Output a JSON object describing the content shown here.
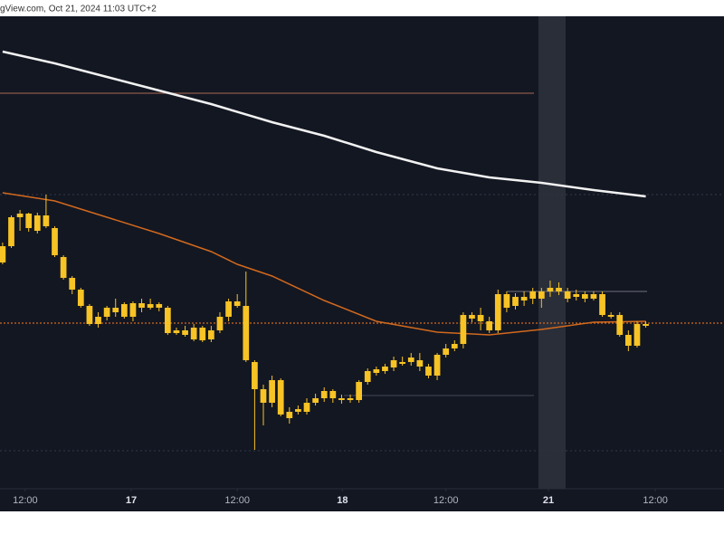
{
  "header": {
    "text": "gView.com, Oct 21, 2024 11:03 UTC+2"
  },
  "chart_data": {
    "type": "candlestick",
    "color": "#f7c325",
    "xlim": [
      -0.3,
      83
    ],
    "ylim": [
      0,
      522
    ],
    "xticks": [
      {
        "value": 2.6,
        "label": "12:00"
      },
      {
        "value": 14.8,
        "label": "17"
      },
      {
        "value": 27,
        "label": "12:00"
      },
      {
        "value": 39.1,
        "label": "18"
      },
      {
        "value": 51,
        "label": "12:00"
      },
      {
        "value": 62.8,
        "label": "21"
      },
      {
        "value": 75.1,
        "label": "12:00"
      }
    ],
    "open": [
      250,
      268,
      300,
      304,
      302,
      290,
      288,
      256,
      233,
      220,
      202,
      190,
      190,
      200,
      204,
      190,
      205,
      200,
      204,
      200,
      175,
      175,
      178,
      178,
      165,
      175,
      190,
      207,
      202,
      140,
      110,
      95,
      120,
      85,
      88,
      85,
      95,
      100,
      108,
      100,
      98,
      98,
      118,
      128,
      130,
      134,
      140,
      140,
      142,
      135,
      125,
      148,
      155,
      160,
      188,
      192,
      185,
      175,
      215,
      202,
      212,
      210,
      218,
      218,
      222,
      218,
      212,
      215,
      215,
      215,
      192,
      192,
      170,
      158,
      182
    ],
    "high": [
      272,
      302,
      308,
      305,
      305,
      325,
      290,
      258,
      235,
      222,
      204,
      195,
      202,
      210,
      206,
      207,
      210,
      210,
      206,
      202,
      178,
      180,
      182,
      180,
      180,
      195,
      210,
      215,
      240,
      142,
      115,
      125,
      122,
      90,
      92,
      100,
      105,
      112,
      110,
      104,
      104,
      120,
      133,
      135,
      138,
      146,
      146,
      150,
      150,
      138,
      150,
      160,
      164,
      195,
      195,
      200,
      190,
      220,
      218,
      216,
      218,
      222,
      222,
      230,
      228,
      222,
      220,
      218,
      218,
      218,
      195,
      195,
      175,
      185,
      185
    ],
    "low": [
      248,
      266,
      285,
      284,
      282,
      288,
      256,
      231,
      215,
      200,
      180,
      178,
      186,
      190,
      188,
      185,
      195,
      198,
      196,
      170,
      170,
      168,
      163,
      162,
      162,
      172,
      185,
      200,
      140,
      43,
      70,
      90,
      80,
      72,
      82,
      82,
      92,
      96,
      95,
      94,
      95,
      95,
      115,
      125,
      127,
      130,
      136,
      136,
      130,
      122,
      120,
      145,
      152,
      155,
      184,
      175,
      172,
      172,
      195,
      198,
      202,
      204,
      200,
      212,
      214,
      206,
      208,
      206,
      208,
      190,
      188,
      168,
      152,
      156,
      178
    ],
    "close": [
      268,
      300,
      304,
      288,
      285,
      302,
      258,
      233,
      220,
      202,
      182,
      182,
      200,
      195,
      190,
      205,
      200,
      204,
      200,
      172,
      172,
      170,
      165,
      164,
      175,
      190,
      207,
      202,
      142,
      110,
      95,
      120,
      82,
      78,
      85,
      95,
      100,
      108,
      100,
      98,
      100,
      118,
      130,
      132,
      135,
      142,
      138,
      145,
      135,
      125,
      148,
      155,
      160,
      192,
      192,
      185,
      175,
      215,
      200,
      212,
      208,
      218,
      210,
      222,
      218,
      210,
      215,
      210,
      210,
      192,
      190,
      170,
      158,
      182,
      180
    ],
    "lines": [
      {
        "color": "#f2f2f2",
        "x": [
          0,
          6,
          12,
          18,
          24,
          31,
          37,
          43,
          50,
          56,
          62,
          68,
          74
        ],
        "values": [
          483,
          470,
          455,
          440,
          425,
          405,
          390,
          372,
          354,
          344,
          338,
          330,
          323
        ]
      },
      {
        "color": "#d2691e",
        "x": [
          0,
          6,
          12,
          18,
          24,
          27,
          31,
          37,
          43,
          50,
          56,
          62,
          68,
          74
        ],
        "values": [
          327,
          318,
          300,
          282,
          262,
          248,
          235,
          208,
          185,
          173,
          170,
          176,
          184,
          185
        ]
      }
    ],
    "levels": [
      {
        "value": 437,
        "color": "#8a5a4a"
      },
      {
        "value": 325,
        "color": "#2e3342"
      },
      {
        "value": 183,
        "color": "#d2691e"
      },
      {
        "value": 103,
        "color": "#3a3f4c"
      },
      {
        "value": 42,
        "color": "#2e3342"
      },
      {
        "value": 218,
        "color": "#5d606b"
      }
    ]
  }
}
